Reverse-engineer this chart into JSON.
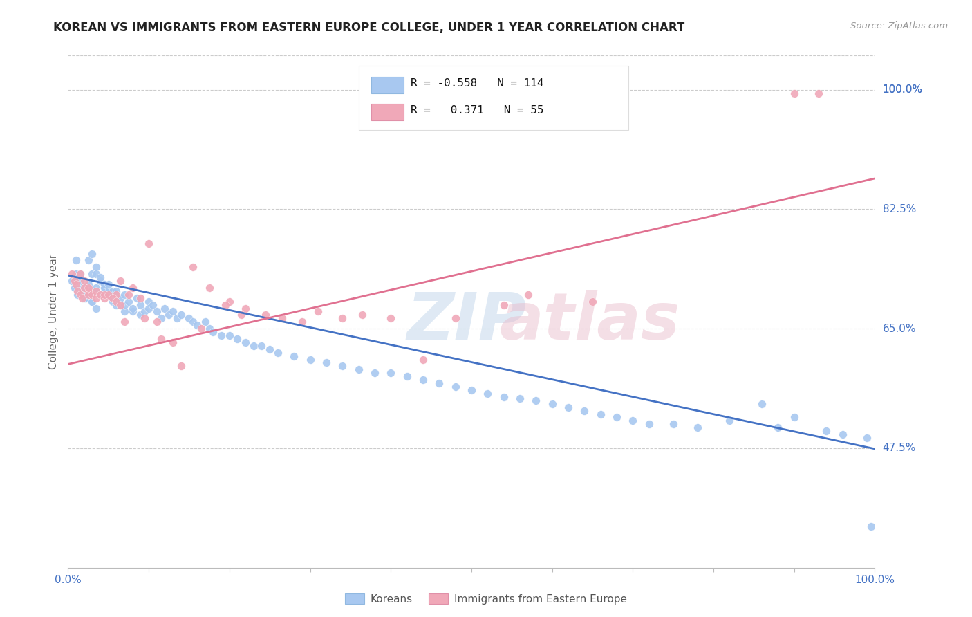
{
  "title": "KOREAN VS IMMIGRANTS FROM EASTERN EUROPE COLLEGE, UNDER 1 YEAR CORRELATION CHART",
  "source": "Source: ZipAtlas.com",
  "ylabel": "College, Under 1 year",
  "xlim": [
    0.0,
    1.0
  ],
  "ylim": [
    0.3,
    1.05
  ],
  "ytick_positions": [
    0.475,
    0.65,
    0.825,
    1.0
  ],
  "ytick_labels": [
    "47.5%",
    "65.0%",
    "82.5%",
    "100.0%"
  ],
  "blue_R": "-0.558",
  "blue_N": "114",
  "pink_R": "0.371",
  "pink_N": "55",
  "blue_color": "#A8C8F0",
  "pink_color": "#F0A8B8",
  "blue_line_color": "#4472C4",
  "pink_line_color": "#E07090",
  "blue_line_y_start": 0.728,
  "blue_line_y_end": 0.474,
  "pink_line_y_start": 0.598,
  "pink_line_y_end": 0.87,
  "bg_color": "#FFFFFF",
  "grid_color": "#CCCCCC",
  "title_color": "#222222",
  "axis_label_color": "#666666",
  "tick_label_color": "#4472C4",
  "blue_points_x": [
    0.005,
    0.008,
    0.01,
    0.012,
    0.015,
    0.018,
    0.02,
    0.022,
    0.025,
    0.012,
    0.015,
    0.018,
    0.02,
    0.022,
    0.025,
    0.028,
    0.03,
    0.01,
    0.015,
    0.02,
    0.025,
    0.03,
    0.035,
    0.025,
    0.03,
    0.035,
    0.04,
    0.03,
    0.035,
    0.04,
    0.045,
    0.035,
    0.04,
    0.045,
    0.05,
    0.055,
    0.04,
    0.045,
    0.05,
    0.055,
    0.06,
    0.05,
    0.055,
    0.06,
    0.065,
    0.07,
    0.06,
    0.065,
    0.07,
    0.08,
    0.07,
    0.075,
    0.08,
    0.09,
    0.085,
    0.09,
    0.095,
    0.1,
    0.1,
    0.105,
    0.11,
    0.115,
    0.12,
    0.125,
    0.13,
    0.135,
    0.14,
    0.15,
    0.155,
    0.16,
    0.17,
    0.175,
    0.18,
    0.19,
    0.2,
    0.21,
    0.22,
    0.23,
    0.24,
    0.25,
    0.26,
    0.28,
    0.3,
    0.32,
    0.34,
    0.36,
    0.38,
    0.4,
    0.42,
    0.44,
    0.46,
    0.48,
    0.5,
    0.52,
    0.54,
    0.56,
    0.58,
    0.6,
    0.62,
    0.64,
    0.66,
    0.68,
    0.7,
    0.72,
    0.75,
    0.78,
    0.82,
    0.86,
    0.88,
    0.9,
    0.94,
    0.96,
    0.99,
    0.995
  ],
  "blue_points_y": [
    0.72,
    0.71,
    0.73,
    0.7,
    0.715,
    0.705,
    0.71,
    0.695,
    0.7,
    0.72,
    0.73,
    0.71,
    0.695,
    0.705,
    0.715,
    0.7,
    0.69,
    0.75,
    0.72,
    0.71,
    0.7,
    0.69,
    0.68,
    0.75,
    0.73,
    0.71,
    0.7,
    0.76,
    0.74,
    0.72,
    0.71,
    0.73,
    0.72,
    0.71,
    0.7,
    0.69,
    0.725,
    0.715,
    0.705,
    0.695,
    0.685,
    0.715,
    0.705,
    0.695,
    0.685,
    0.675,
    0.705,
    0.695,
    0.685,
    0.675,
    0.7,
    0.69,
    0.68,
    0.67,
    0.695,
    0.685,
    0.675,
    0.69,
    0.68,
    0.685,
    0.675,
    0.665,
    0.68,
    0.67,
    0.675,
    0.665,
    0.67,
    0.665,
    0.66,
    0.655,
    0.66,
    0.65,
    0.645,
    0.64,
    0.64,
    0.635,
    0.63,
    0.625,
    0.625,
    0.62,
    0.615,
    0.61,
    0.605,
    0.6,
    0.595,
    0.59,
    0.585,
    0.585,
    0.58,
    0.575,
    0.57,
    0.565,
    0.56,
    0.555,
    0.55,
    0.548,
    0.545,
    0.54,
    0.535,
    0.53,
    0.525,
    0.52,
    0.515,
    0.51,
    0.51,
    0.505,
    0.515,
    0.54,
    0.505,
    0.52,
    0.5,
    0.495,
    0.49,
    0.36
  ],
  "pink_points_x": [
    0.005,
    0.008,
    0.01,
    0.012,
    0.015,
    0.018,
    0.02,
    0.025,
    0.015,
    0.02,
    0.025,
    0.025,
    0.03,
    0.035,
    0.035,
    0.04,
    0.045,
    0.045,
    0.05,
    0.06,
    0.055,
    0.06,
    0.065,
    0.065,
    0.07,
    0.08,
    0.075,
    0.09,
    0.095,
    0.1,
    0.11,
    0.115,
    0.13,
    0.14,
    0.155,
    0.165,
    0.175,
    0.2,
    0.22,
    0.245,
    0.265,
    0.29,
    0.31,
    0.34,
    0.365,
    0.4,
    0.44,
    0.48,
    0.54,
    0.57,
    0.65,
    0.9,
    0.93,
    0.195,
    0.215
  ],
  "pink_points_y": [
    0.73,
    0.72,
    0.715,
    0.705,
    0.7,
    0.695,
    0.72,
    0.705,
    0.73,
    0.71,
    0.7,
    0.71,
    0.7,
    0.695,
    0.705,
    0.7,
    0.695,
    0.7,
    0.7,
    0.7,
    0.695,
    0.69,
    0.685,
    0.72,
    0.66,
    0.71,
    0.7,
    0.695,
    0.665,
    0.775,
    0.66,
    0.635,
    0.63,
    0.595,
    0.74,
    0.65,
    0.71,
    0.69,
    0.68,
    0.67,
    0.665,
    0.66,
    0.675,
    0.665,
    0.67,
    0.665,
    0.605,
    0.665,
    0.685,
    0.7,
    0.69,
    0.995,
    0.995,
    0.685,
    0.67
  ]
}
